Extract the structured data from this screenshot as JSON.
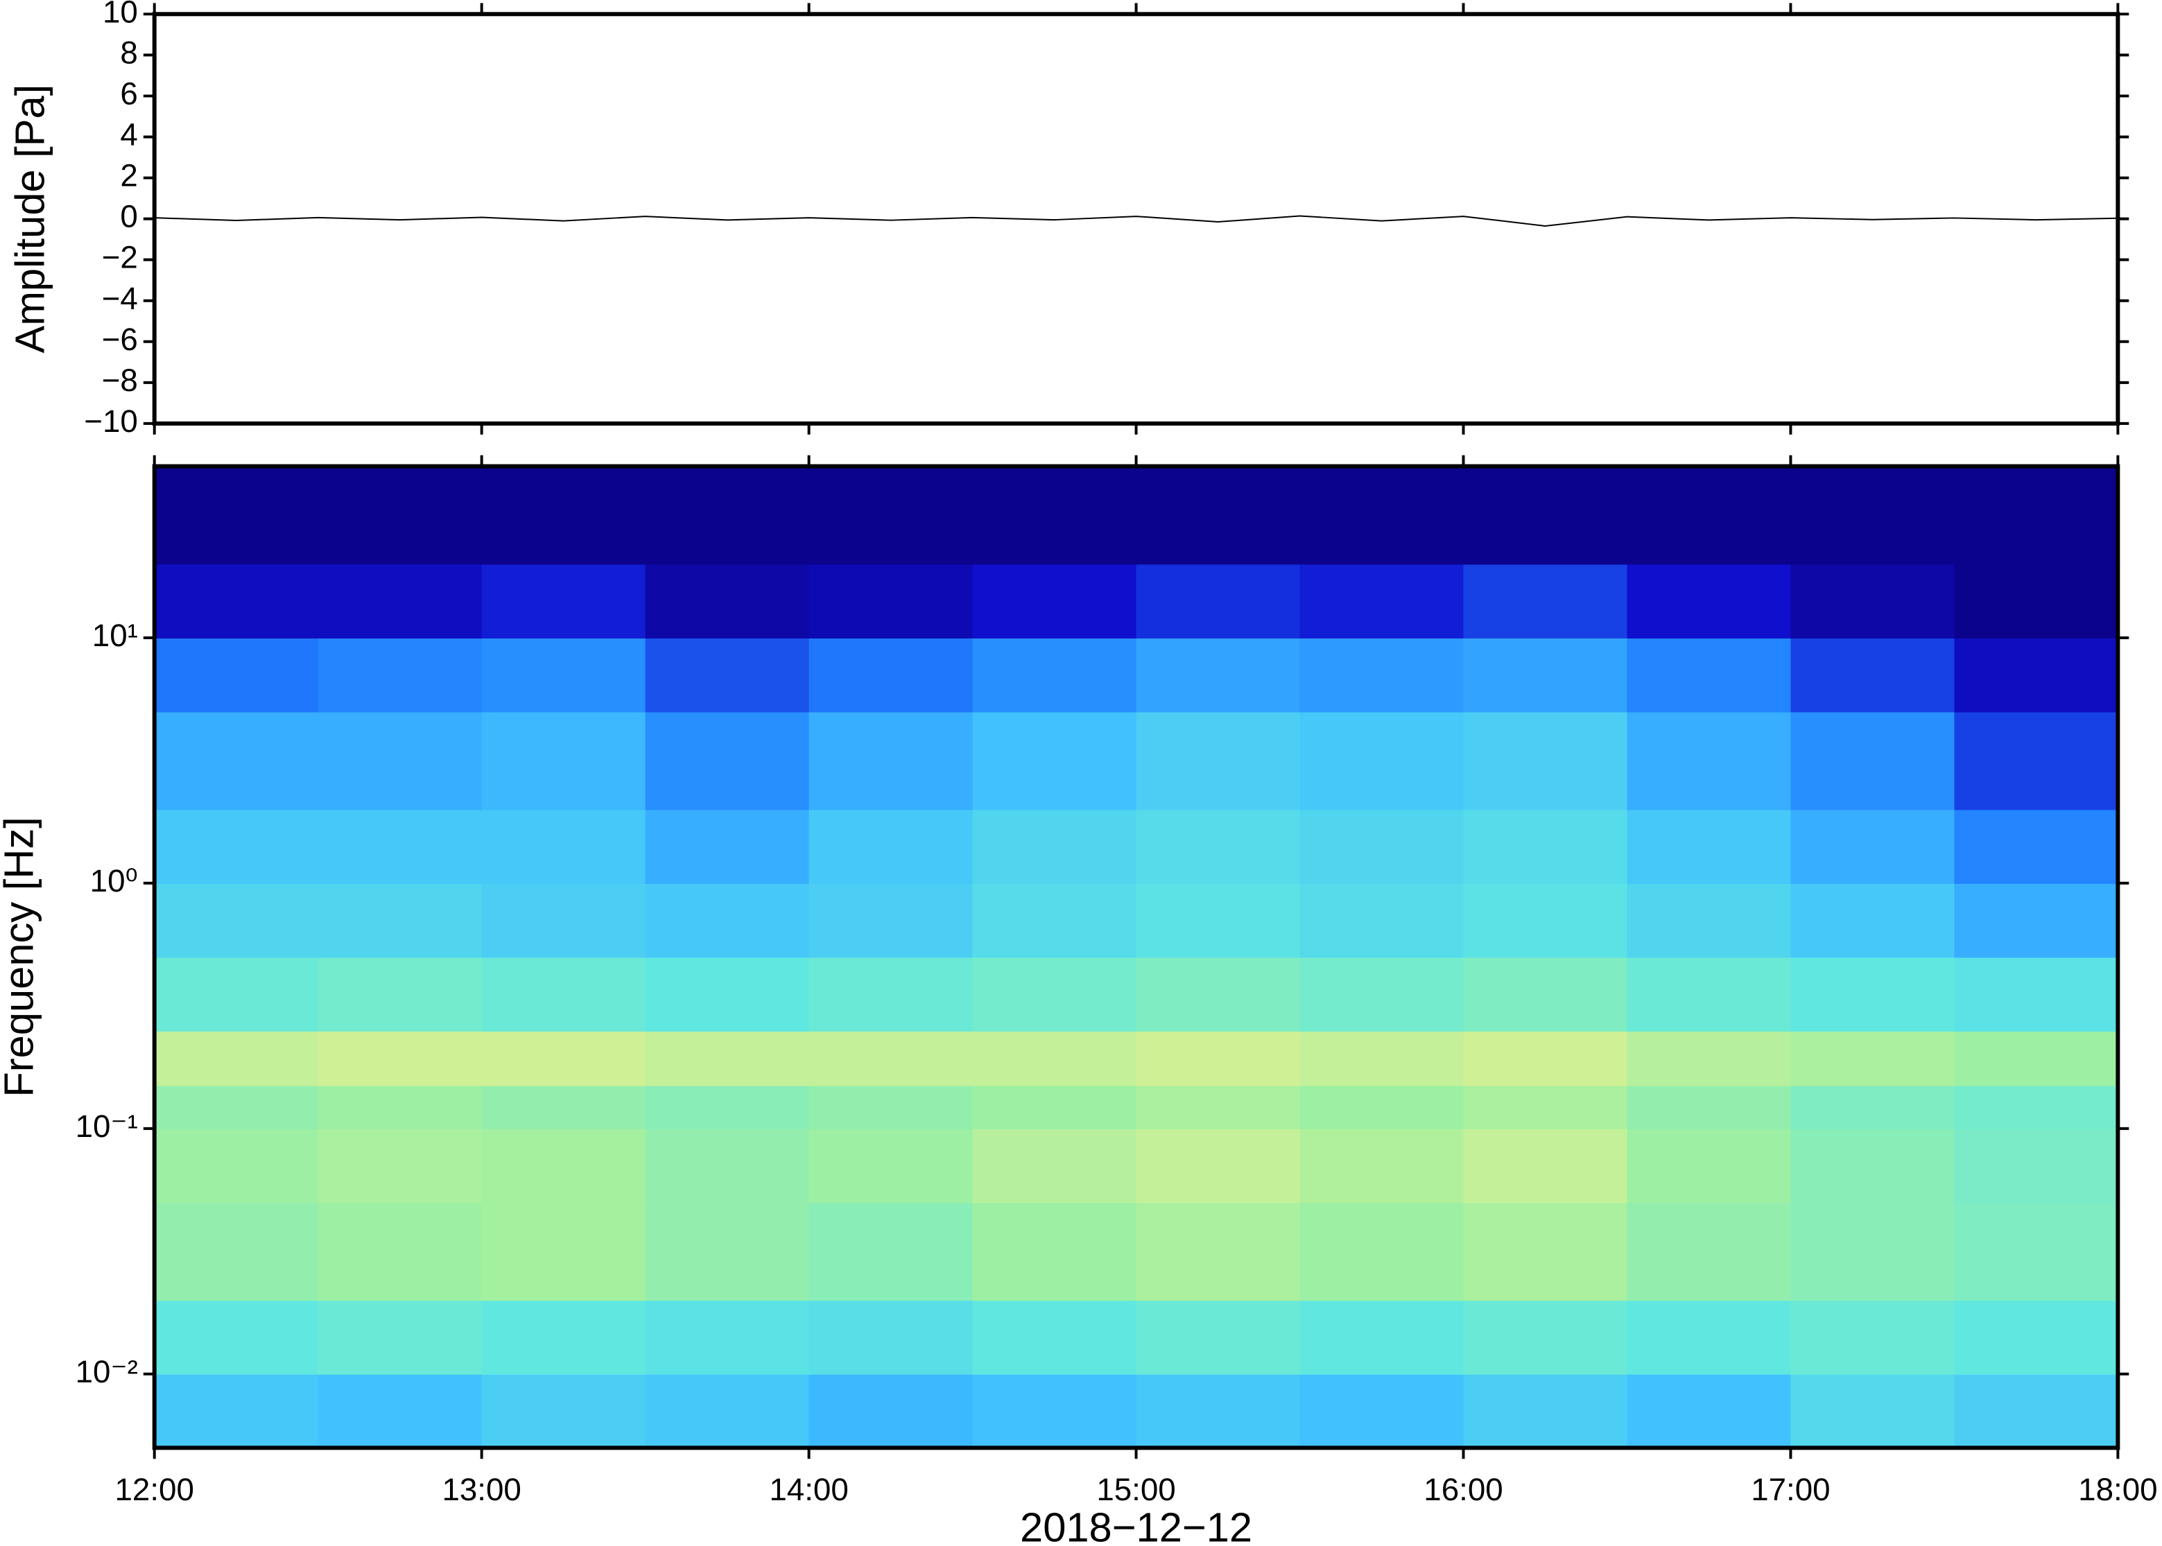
{
  "chart_data": [
    {
      "type": "line",
      "ylabel": "Amplitude [Pa]",
      "color": "#000000",
      "x": [
        12,
        12.25,
        12.5,
        12.75,
        13,
        13.25,
        13.5,
        13.75,
        14,
        14.25,
        14.5,
        14.75,
        15,
        15.25,
        15.5,
        15.75,
        16,
        16.25,
        16.5,
        16.75,
        17,
        17.25,
        17.5,
        17.75,
        18
      ],
      "values": [
        0.05,
        -0.08,
        0.06,
        -0.05,
        0.07,
        -0.1,
        0.12,
        -0.06,
        0.05,
        -0.07,
        0.06,
        -0.05,
        0.12,
        -0.15,
        0.14,
        -0.1,
        0.12,
        -0.35,
        0.1,
        -0.06,
        0.05,
        -0.04,
        0.04,
        -0.05,
        0.03
      ],
      "xlim": [
        12,
        18
      ],
      "xticks": [
        12,
        13,
        14,
        15,
        16,
        17,
        18
      ],
      "ylim": [
        -10,
        10
      ],
      "yticks": [
        {
          "value": -10,
          "label": "−10"
        },
        {
          "value": -8,
          "label": "−8"
        },
        {
          "value": -6,
          "label": "−6"
        },
        {
          "value": -4,
          "label": "−4"
        },
        {
          "value": -2,
          "label": "−2"
        },
        0,
        2,
        4,
        6,
        8,
        10
      ]
    },
    {
      "type": "heatmap",
      "ylabel": "Frequency [Hz]",
      "xlabel": "2018−12−12",
      "log_y": true,
      "x_edges": [
        12,
        12.5,
        13,
        13.5,
        14,
        14.5,
        15,
        15.5,
        16,
        16.5,
        17,
        17.5,
        18
      ],
      "y_edges": [
        0.005,
        0.01,
        0.02,
        0.05,
        0.1,
        0.15,
        0.25,
        0.5,
        1,
        2,
        5,
        10,
        20,
        50
      ],
      "zlim": [
        0,
        1
      ],
      "colormap": [
        "#0b0080",
        "#1010d0",
        "#2080ff",
        "#40c0ff",
        "#60e8e0",
        "#a0f0a0",
        "#f0f090",
        "#ffb060",
        "#ff6040"
      ],
      "values": [
        [
          0.4,
          0.38,
          0.42,
          0.4,
          0.36,
          0.38,
          0.4,
          0.38,
          0.42,
          0.38,
          0.45,
          0.42
        ],
        [
          0.5,
          0.52,
          0.5,
          0.48,
          0.47,
          0.5,
          0.52,
          0.5,
          0.52,
          0.5,
          0.52,
          0.5
        ],
        [
          0.6,
          0.62,
          0.63,
          0.6,
          0.58,
          0.62,
          0.64,
          0.62,
          0.64,
          0.6,
          0.58,
          0.56
        ],
        [
          0.62,
          0.64,
          0.63,
          0.6,
          0.62,
          0.66,
          0.68,
          0.65,
          0.68,
          0.62,
          0.58,
          0.55
        ],
        [
          0.6,
          0.62,
          0.6,
          0.58,
          0.6,
          0.62,
          0.64,
          0.62,
          0.64,
          0.6,
          0.56,
          0.54
        ],
        [
          0.68,
          0.7,
          0.7,
          0.68,
          0.68,
          0.68,
          0.7,
          0.68,
          0.7,
          0.66,
          0.64,
          0.62
        ],
        [
          0.52,
          0.54,
          0.52,
          0.5,
          0.52,
          0.54,
          0.56,
          0.54,
          0.56,
          0.52,
          0.5,
          0.48
        ],
        [
          0.44,
          0.44,
          0.42,
          0.4,
          0.42,
          0.46,
          0.48,
          0.46,
          0.48,
          0.44,
          0.4,
          0.34
        ],
        [
          0.4,
          0.4,
          0.4,
          0.34,
          0.4,
          0.44,
          0.46,
          0.44,
          0.46,
          0.4,
          0.34,
          0.26
        ],
        [
          0.34,
          0.34,
          0.36,
          0.28,
          0.34,
          0.38,
          0.42,
          0.4,
          0.42,
          0.34,
          0.28,
          0.18
        ],
        [
          0.24,
          0.26,
          0.28,
          0.2,
          0.24,
          0.28,
          0.32,
          0.3,
          0.32,
          0.26,
          0.18,
          0.1
        ],
        [
          0.1,
          0.1,
          0.14,
          0.06,
          0.08,
          0.12,
          0.16,
          0.14,
          0.18,
          0.12,
          0.06,
          0.02
        ],
        [
          0.02,
          0.02,
          0.02,
          0.02,
          0.02,
          0.02,
          0.02,
          0.02,
          0.02,
          0.02,
          0.02,
          0.02
        ]
      ],
      "xlim": [
        12,
        18
      ],
      "xticks": [
        {
          "value": 12,
          "label": "12:00"
        },
        {
          "value": 13,
          "label": "13:00"
        },
        {
          "value": 14,
          "label": "14:00"
        },
        {
          "value": 15,
          "label": "15:00"
        },
        {
          "value": 16,
          "label": "16:00"
        },
        {
          "value": 17,
          "label": "17:00"
        },
        {
          "value": 18,
          "label": "18:00"
        }
      ],
      "ylim": [
        0.005,
        50
      ],
      "yticks": [
        {
          "value": 0.01,
          "label": "10⁻²"
        },
        {
          "value": 0.1,
          "label": "10⁻¹"
        },
        {
          "value": 1,
          "label": "10⁰"
        },
        {
          "value": 10,
          "label": "10¹"
        }
      ]
    }
  ]
}
